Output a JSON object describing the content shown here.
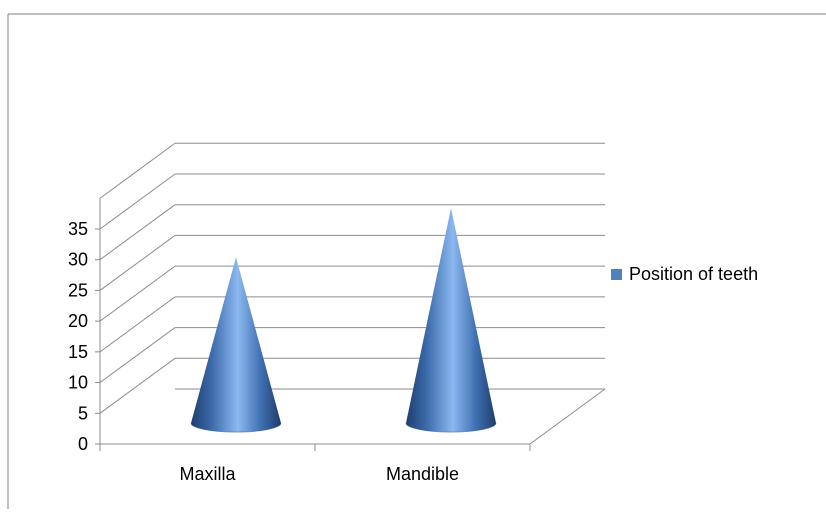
{
  "chart_data": {
    "type": "bar",
    "style": "3d-cone",
    "title": "",
    "xlabel": "",
    "ylabel": "",
    "categories": [
      "Maxilla",
      "Mandible"
    ],
    "series": [
      {
        "name": "Position of teeth",
        "values": [
          27,
          35
        ]
      }
    ],
    "ylim": [
      0,
      35
    ],
    "yticks": [
      0,
      5,
      10,
      15,
      20,
      25,
      30,
      35
    ],
    "grid": true,
    "legend_position": "right",
    "colors": {
      "series": "#4f81bd",
      "gridline": "#8c8c8c",
      "axis": "#8c8c8c",
      "frame": "#7f7f7f"
    }
  }
}
